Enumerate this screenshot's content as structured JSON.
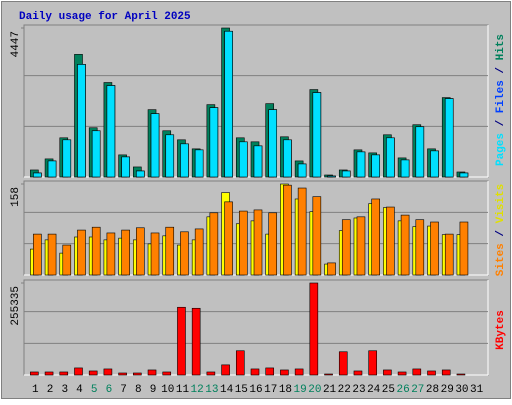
{
  "chart_data": [
    {
      "type": "bar",
      "title": "Daily usage for April 2025",
      "categories": [
        "1",
        "2",
        "3",
        "4",
        "5",
        "6",
        "7",
        "8",
        "9",
        "10",
        "11",
        "12",
        "13",
        "14",
        "15",
        "16",
        "17",
        "18",
        "19",
        "20",
        "21",
        "22",
        "23",
        "24",
        "25",
        "26",
        "27",
        "28",
        "29",
        "30",
        "31"
      ],
      "ylim": [
        0,
        4447
      ],
      "yticks": [
        4447
      ],
      "grid": true,
      "legend_separator": " / ",
      "series": [
        {
          "name": "Pages",
          "color": "#00E0FF",
          "values": [
            120,
            480,
            1110,
            3360,
            1380,
            2730,
            600,
            180,
            1890,
            1260,
            990,
            810,
            2070,
            4350,
            1050,
            930,
            2010,
            1110,
            390,
            2520,
            30,
            180,
            750,
            660,
            1170,
            510,
            1500,
            780,
            2340,
            120,
            null
          ]
        },
        {
          "name": "Files",
          "color": "#0040FF",
          "values": [
            120,
            480,
            1110,
            3360,
            1380,
            2730,
            600,
            180,
            1890,
            1260,
            990,
            810,
            2070,
            4350,
            1050,
            930,
            2010,
            1110,
            390,
            2520,
            30,
            180,
            750,
            660,
            1170,
            510,
            1500,
            780,
            2340,
            120,
            null
          ]
        },
        {
          "name": "Hits",
          "color": "#00805C",
          "values": [
            210,
            540,
            1170,
            3660,
            1470,
            2820,
            660,
            300,
            2010,
            1380,
            1110,
            840,
            2160,
            4447,
            1170,
            1050,
            2190,
            1200,
            480,
            2610,
            60,
            210,
            810,
            720,
            1260,
            570,
            1560,
            840,
            2370,
            150,
            null
          ]
        }
      ]
    },
    {
      "type": "bar",
      "categories": [
        "1",
        "2",
        "3",
        "4",
        "5",
        "6",
        "7",
        "8",
        "9",
        "10",
        "11",
        "12",
        "13",
        "14",
        "15",
        "16",
        "17",
        "18",
        "19",
        "20",
        "21",
        "22",
        "23",
        "24",
        "25",
        "26",
        "27",
        "28",
        "29",
        "30",
        "31"
      ],
      "ylim": [
        0,
        158
      ],
      "yticks": [
        158
      ],
      "grid": true,
      "legend_separator": " / ",
      "series": [
        {
          "name": "Sites",
          "color": "#FF8000",
          "values": [
            71,
            71,
            52,
            78,
            83,
            73,
            78,
            82,
            73,
            83,
            75,
            80,
            108,
            127,
            111,
            113,
            108,
            156,
            151,
            136,
            21,
            96,
            101,
            132,
            118,
            104,
            96,
            92,
            71,
            92,
            null
          ]
        },
        {
          "name": "Visits",
          "color": "#FFFF00",
          "values": [
            45,
            61,
            38,
            66,
            66,
            61,
            64,
            61,
            54,
            68,
            52,
            61,
            101,
            143,
            89,
            94,
            71,
            158,
            132,
            110,
            19,
            77,
            99,
            124,
            117,
            94,
            84,
            85,
            70,
            70,
            null
          ]
        }
      ]
    },
    {
      "type": "bar",
      "categories": [
        "1",
        "2",
        "3",
        "4",
        "5",
        "6",
        "7",
        "8",
        "9",
        "10",
        "11",
        "12",
        "13",
        "14",
        "15",
        "16",
        "17",
        "18",
        "19",
        "20",
        "21",
        "22",
        "23",
        "24",
        "25",
        "26",
        "27",
        "28",
        "29",
        "30",
        "31"
      ],
      "weekend_color": "#00805C",
      "weekend": [
        5,
        6,
        12,
        13,
        19,
        20,
        26,
        27
      ],
      "ylim": [
        0,
        255335
      ],
      "yticks": [
        255335
      ],
      "grid": true,
      "legend_separator": " / ",
      "series": [
        {
          "name": "KBytes",
          "color": "#FF0000",
          "values": [
            8400,
            8400,
            8400,
            19600,
            11200,
            16800,
            5600,
            5600,
            14000,
            8400,
            188000,
            185200,
            8400,
            28100,
            67300,
            16800,
            19600,
            14000,
            16800,
            255335,
            2800,
            64500,
            11200,
            67300,
            14000,
            8400,
            16800,
            11200,
            14000,
            2800,
            null
          ]
        }
      ]
    }
  ]
}
